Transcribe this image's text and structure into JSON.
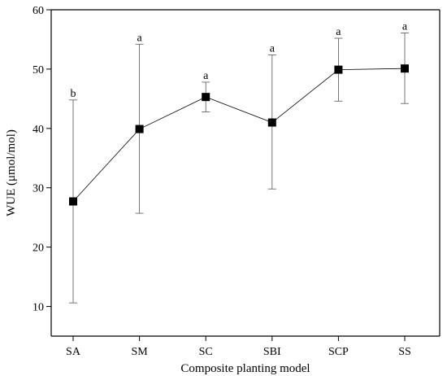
{
  "chart_data": {
    "type": "line",
    "xlabel": "Composite planting model",
    "ylabel": "WUE (μmol/mol)",
    "ylim": [
      5,
      60
    ],
    "yticks": [
      10,
      20,
      30,
      40,
      50,
      60
    ],
    "categories": [
      "SA",
      "SM",
      "SC",
      "SBI",
      "SCP",
      "SS"
    ],
    "values": [
      27.7,
      39.9,
      45.3,
      41.0,
      49.9,
      50.1
    ],
    "error_low": [
      10.6,
      25.7,
      42.8,
      29.8,
      44.6,
      44.2
    ],
    "error_high": [
      44.8,
      54.2,
      47.8,
      52.4,
      55.2,
      56.1
    ],
    "significance": [
      "b",
      "a",
      "a",
      "a",
      "a",
      "a"
    ],
    "marker": "square",
    "marker_color": "#000000",
    "line_color": "#000000",
    "grid": false
  }
}
